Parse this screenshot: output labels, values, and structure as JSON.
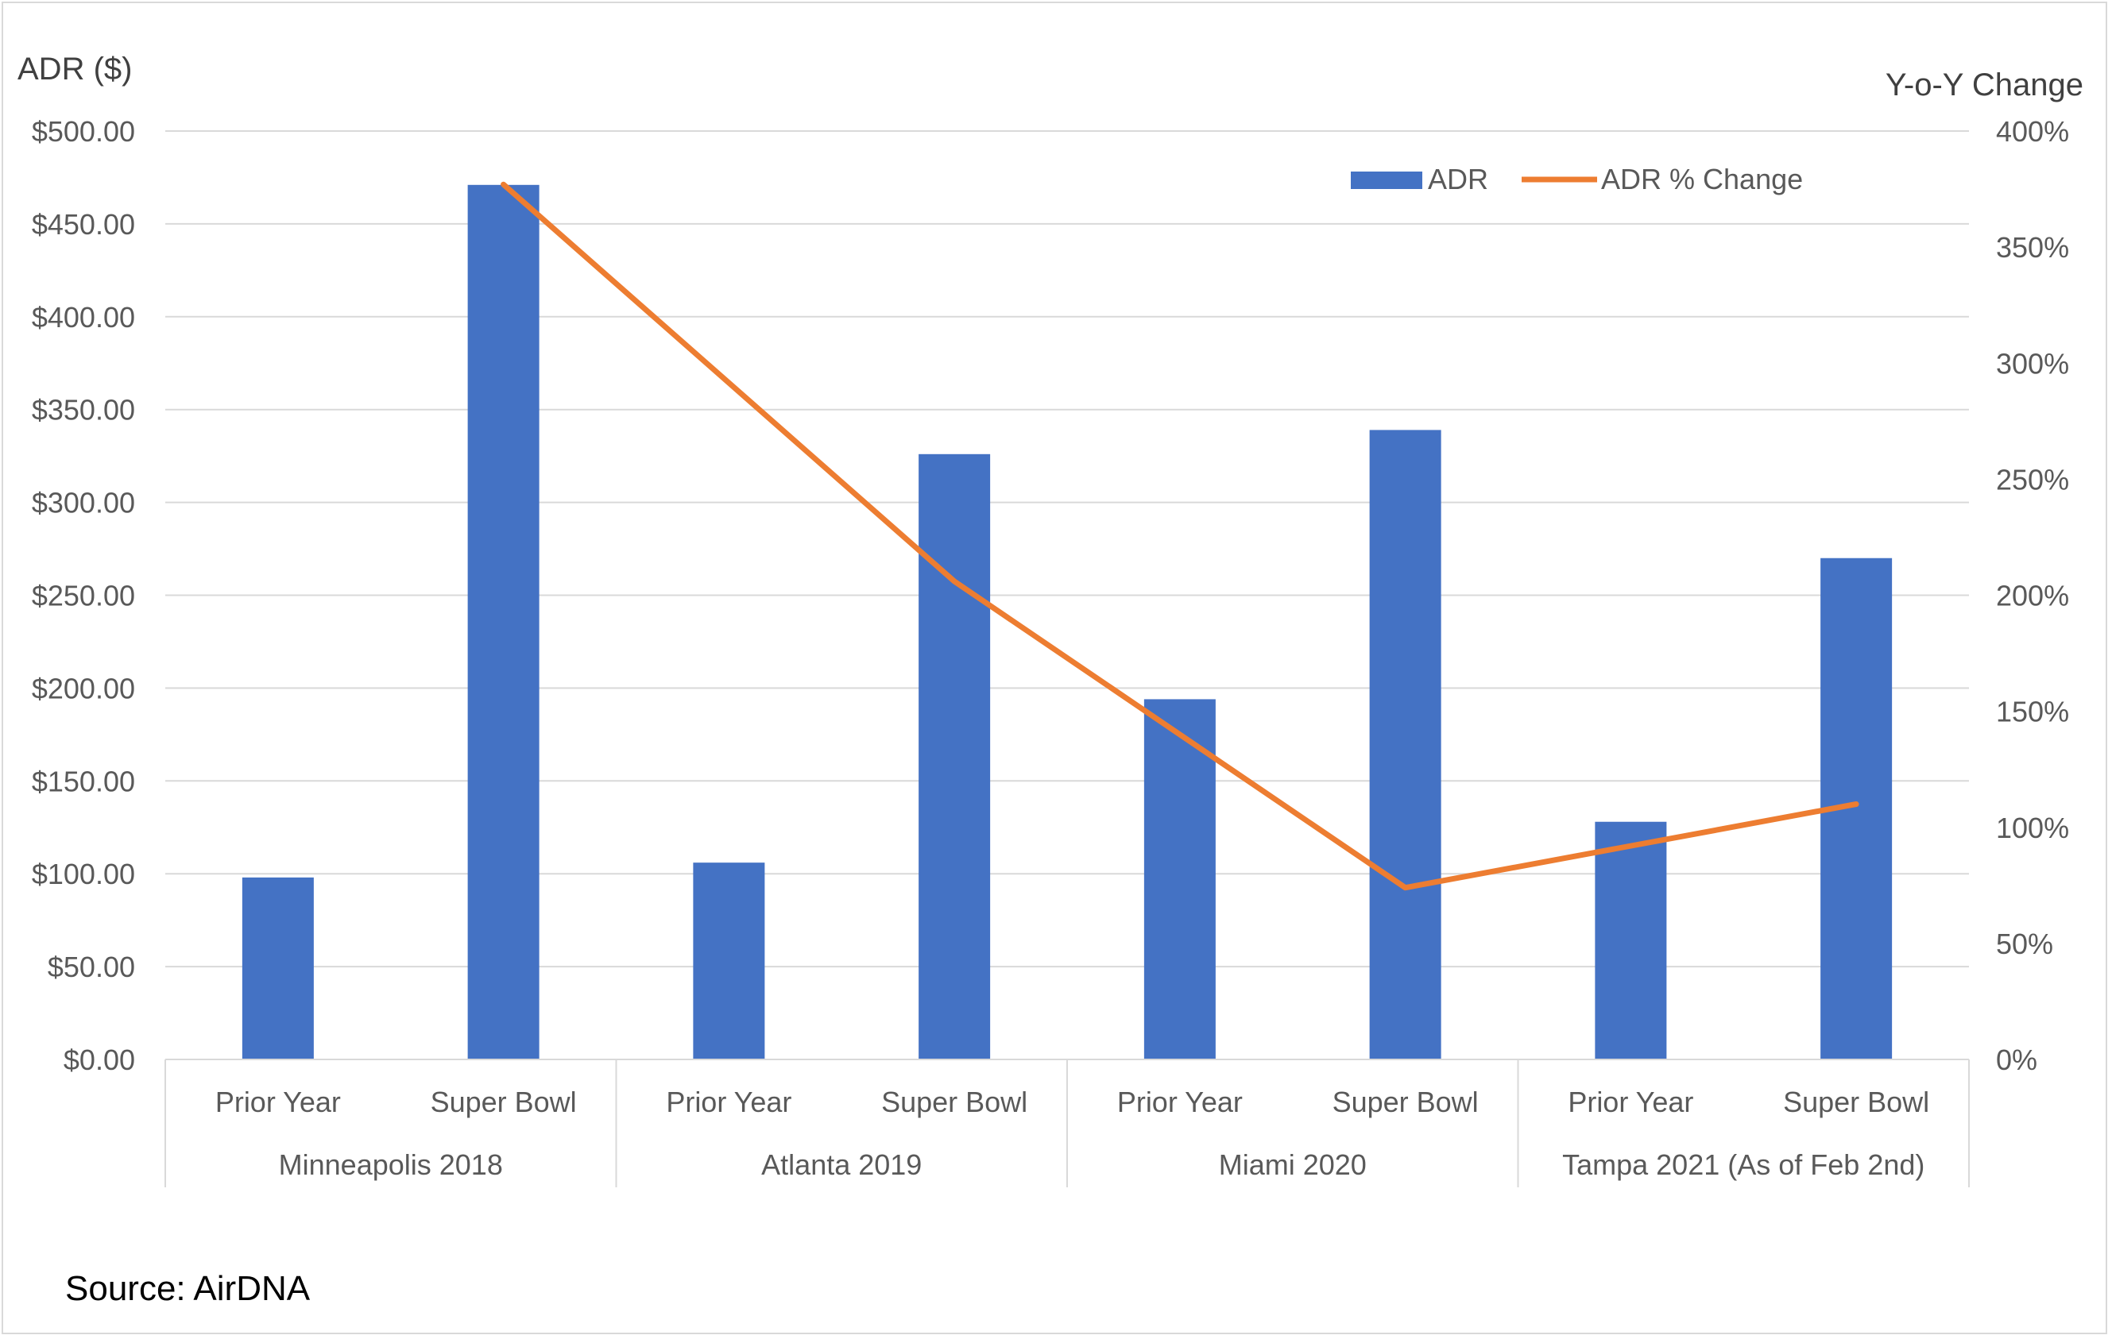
{
  "chart_data": {
    "type": "bar",
    "left_axis_title": "ADR ($)",
    "right_axis_title": "Y-o-Y Change",
    "left_axis": {
      "min": 0,
      "max": 500,
      "step": 50,
      "tick_labels": [
        "$0.00",
        "$50.00",
        "$100.00",
        "$150.00",
        "$200.00",
        "$250.00",
        "$300.00",
        "$350.00",
        "$400.00",
        "$450.00",
        "$500.00"
      ]
    },
    "right_axis": {
      "min": 0,
      "max": 400,
      "step": 50,
      "tick_labels": [
        "0%",
        "50%",
        "100%",
        "150%",
        "200%",
        "250%",
        "300%",
        "350%",
        "400%"
      ]
    },
    "groups": [
      {
        "label": "Minneapolis 2018",
        "categories": [
          "Prior Year",
          "Super Bowl"
        ]
      },
      {
        "label": "Atlanta 2019",
        "categories": [
          "Prior Year",
          "Super Bowl"
        ]
      },
      {
        "label": "Miami 2020",
        "categories": [
          "Prior Year",
          "Super Bowl"
        ]
      },
      {
        "label": "Tampa 2021 (As of Feb 2nd)",
        "categories": [
          "Prior Year",
          "Super Bowl"
        ]
      }
    ],
    "series": [
      {
        "name": "ADR",
        "type": "bar",
        "axis": "left",
        "color": "#4472C4",
        "values": [
          98,
          471,
          106,
          326,
          194,
          339,
          128,
          270
        ]
      },
      {
        "name": "ADR % Change",
        "type": "line",
        "axis": "right",
        "color": "#ED7D31",
        "points": [
          {
            "category_index": 1,
            "value": 377
          },
          {
            "category_index": 3,
            "value": 206
          },
          {
            "category_index": 5,
            "value": 74
          },
          {
            "category_index": 7,
            "value": 110
          }
        ]
      }
    ],
    "legend_position": "top-right",
    "gridlines": true
  },
  "source": "Source: AirDNA"
}
